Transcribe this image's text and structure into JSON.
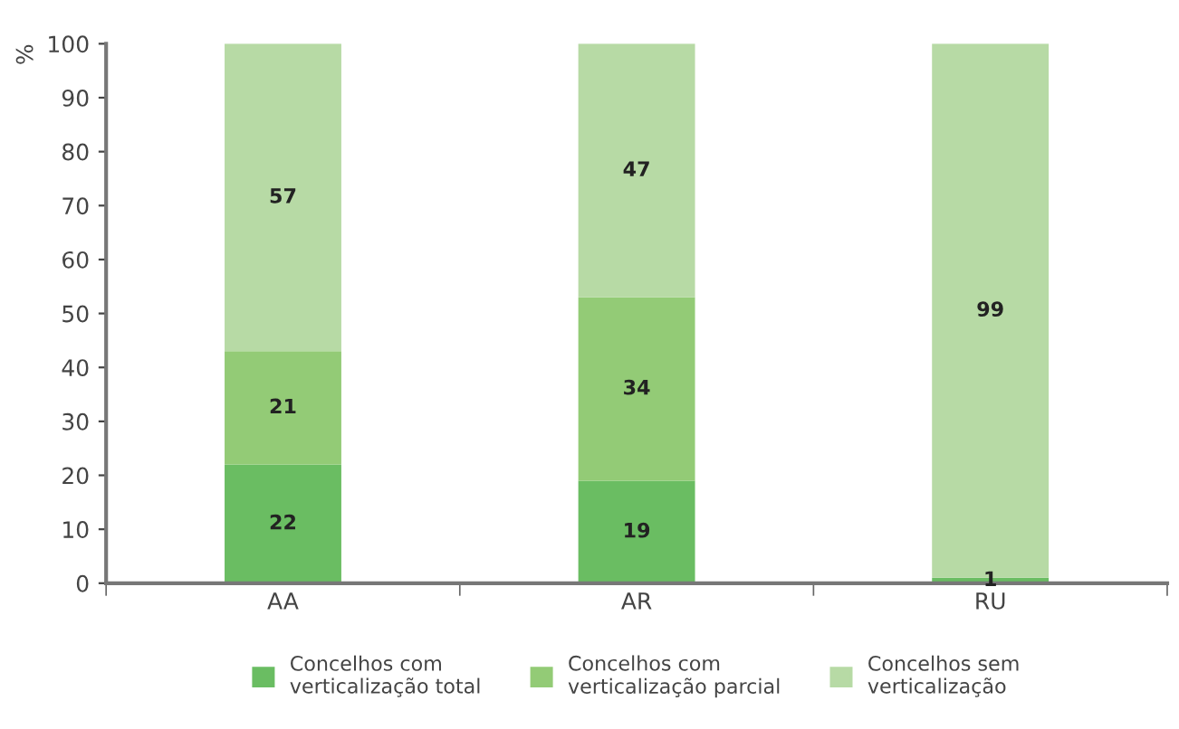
{
  "chart_data": {
    "type": "bar",
    "stacked": true,
    "ylabel": "%",
    "categories": [
      "AA",
      "AR",
      "RU"
    ],
    "series": [
      {
        "name": "Concelhos com\nverticalização total",
        "color": "#6abd62",
        "values": [
          22,
          19,
          1
        ],
        "value_labels": [
          "22",
          "19",
          "1"
        ]
      },
      {
        "name": "Concelhos com\nverticalização parcial",
        "color": "#93cb76",
        "values": [
          21,
          34,
          0
        ],
        "value_labels": [
          "21",
          "34",
          null
        ]
      },
      {
        "name": "Concelhos sem\nverticalização",
        "color": "#b7daa5",
        "values": [
          57,
          47,
          99
        ],
        "value_labels": [
          "57",
          "47",
          "99"
        ]
      }
    ],
    "ylim": [
      0,
      100
    ],
    "yticks": [
      0,
      10,
      20,
      30,
      40,
      50,
      60,
      70,
      80,
      90,
      100
    ],
    "grid": false,
    "legend": "bottom"
  }
}
